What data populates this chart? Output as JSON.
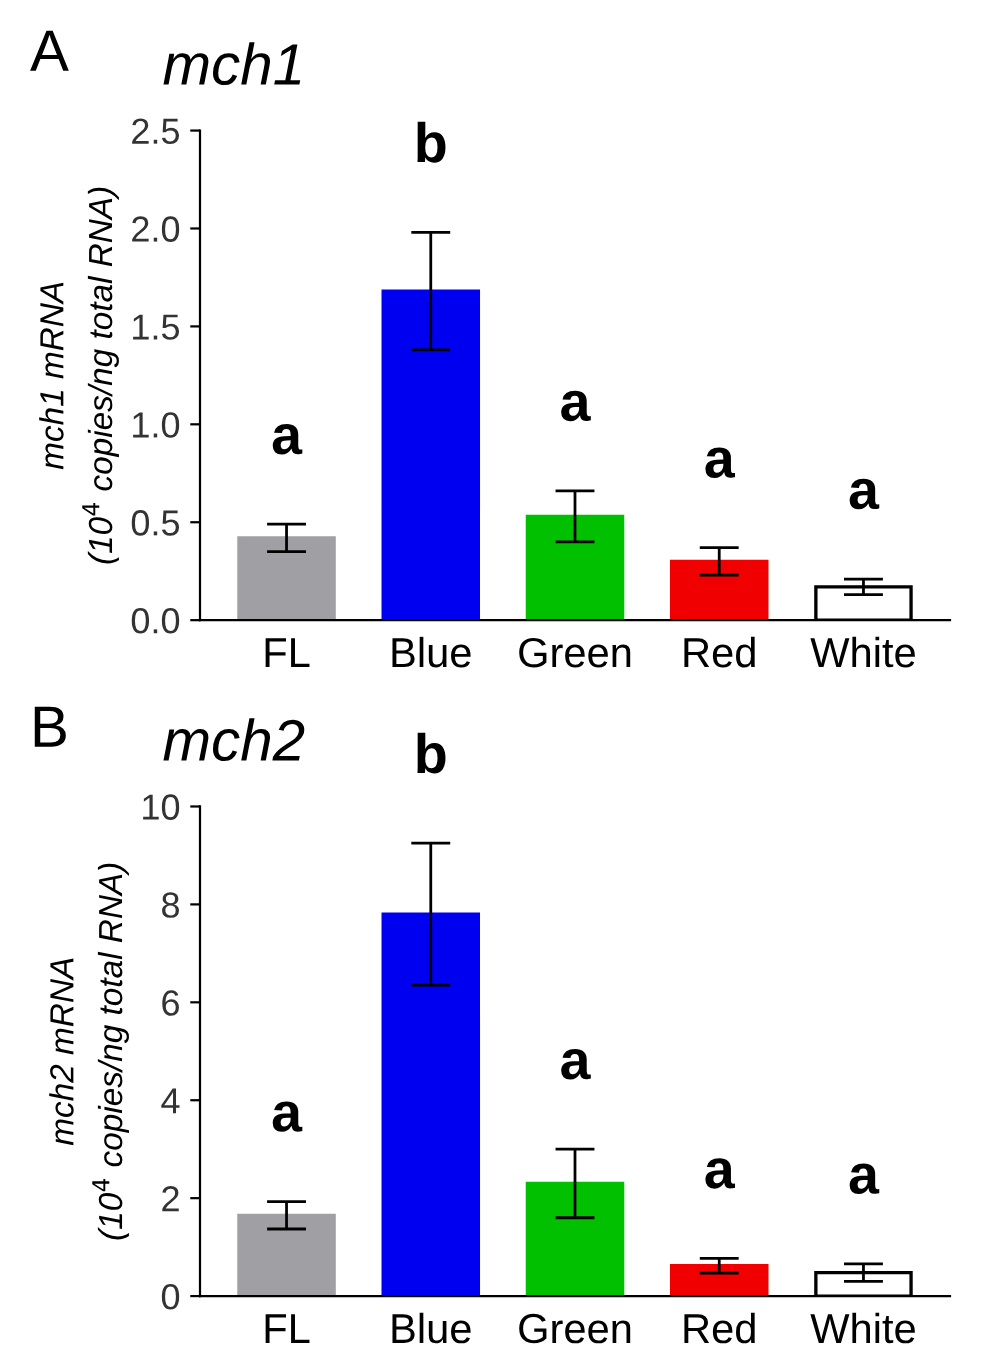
{
  "chart_data": [
    {
      "type": "bar",
      "title": "mch1",
      "ylabel": "mch1 mRNA\n(10$^{4}$ copies/ng total RNA)",
      "categories": [
        "FL",
        "Blue",
        "Green",
        "Red",
        "White"
      ],
      "values": [
        0.42,
        1.68,
        0.53,
        0.3,
        0.17
      ],
      "errors": [
        0.07,
        0.3,
        0.13,
        0.07,
        0.04
      ],
      "colors": [
        "#a0a0a4",
        "#0000f0",
        "#00c000",
        "#f00000",
        "#ffffff"
      ],
      "ylim": [
        0,
        2.5
      ],
      "yticks": [
        {
          "value": 0,
          "label": "0.0"
        },
        0.5,
        {
          "value": 1,
          "label": "1.0"
        },
        1.5,
        {
          "value": 2,
          "label": "2.0"
        },
        2.5
      ],
      "grid": false,
      "annotations": [
        "A",
        "a",
        "b",
        "a",
        "a",
        "a"
      ]
    },
    {
      "type": "bar",
      "title": "mch2",
      "ylabel": "mch2 mRNA\n(10$^{4}$ copies/ng total RNA)",
      "categories": [
        "FL",
        "Blue",
        "Green",
        "Red",
        "White"
      ],
      "values": [
        1.65,
        7.8,
        2.3,
        0.62,
        0.48
      ],
      "errors": [
        0.28,
        1.45,
        0.7,
        0.15,
        0.18
      ],
      "colors": [
        "#a0a0a4",
        "#0000f0",
        "#00c000",
        "#f00000",
        "#ffffff"
      ],
      "ylim": [
        0,
        10
      ],
      "yticks": [
        0,
        2,
        4,
        6,
        8,
        10
      ],
      "grid": false,
      "annotations": [
        "B",
        "a",
        "b",
        "a",
        "a",
        "a"
      ]
    }
  ]
}
